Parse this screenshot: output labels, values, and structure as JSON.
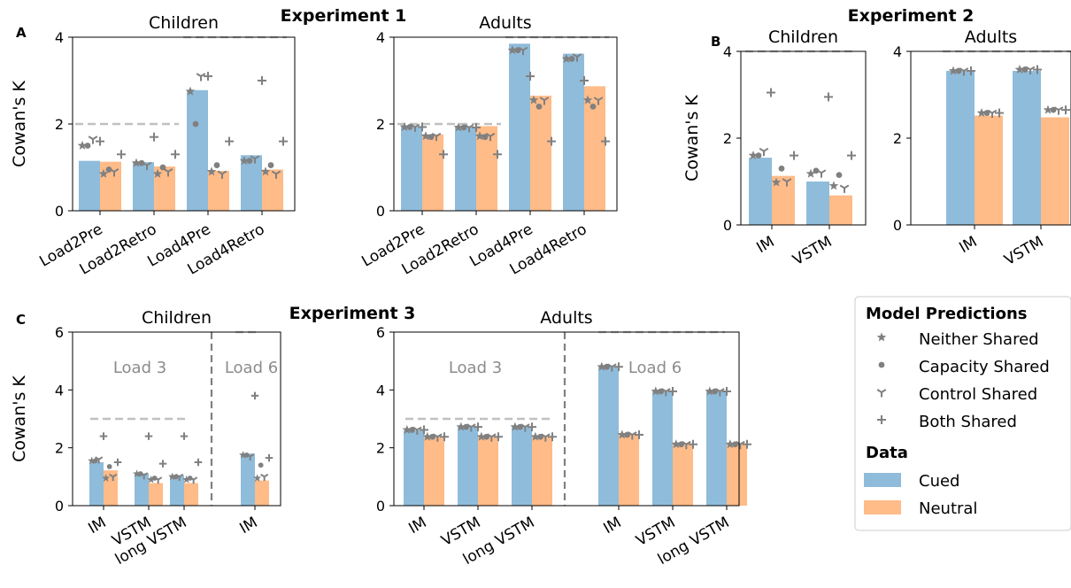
{
  "experiments": {
    "e1": "Experiment 1",
    "e2": "Experiment 2",
    "e3": "Experiment 3"
  },
  "panel_letters": {
    "a": "A",
    "b": "B",
    "c": "C"
  },
  "colors": {
    "cued": "#8fbcdb",
    "neutral": "#ffbb88",
    "marker": "#808080",
    "dash": "#c0c0c0",
    "divider": "#808080",
    "annot": "#8c8c8c"
  },
  "legend": {
    "model_title": "Model Predictions",
    "models": [
      {
        "name": "Neither Shared",
        "marker": "star-icon"
      },
      {
        "name": "Capacity Shared",
        "marker": "circle-icon"
      },
      {
        "name": "Control Shared",
        "marker": "tri-down-icon"
      },
      {
        "name": "Both Shared",
        "marker": "plus-icon"
      }
    ],
    "data_title": "Data",
    "data": [
      {
        "name": "Cued",
        "color": "#8fbcdb"
      },
      {
        "name": "Neutral",
        "color": "#ffbb88"
      }
    ]
  },
  "chart_data": [
    {
      "id": "A-children",
      "type": "bar",
      "title": "Children",
      "ylabel": "Cowan's K",
      "ylim": [
        0,
        4
      ],
      "yticks": [
        0,
        2,
        4
      ],
      "categories": [
        "Load2Pre",
        "Load2Retro",
        "Load4Pre",
        "Load4Retro"
      ],
      "series": [
        {
          "name": "Cued",
          "values": [
            1.15,
            1.12,
            2.78,
            1.28
          ]
        },
        {
          "name": "Neutral",
          "values": [
            1.13,
            1.02,
            0.92,
            0.95
          ]
        }
      ],
      "capacity": [
        2,
        2,
        4,
        4
      ],
      "predictions": {
        "Neither Shared": [
          [
            1.5,
            0.85
          ],
          [
            1.1,
            0.85
          ],
          [
            2.75,
            0.9
          ],
          [
            1.15,
            0.9
          ]
        ],
        "Capacity Shared": [
          [
            1.5,
            0.95
          ],
          [
            1.1,
            1.0
          ],
          [
            2.0,
            1.05
          ],
          [
            1.15,
            1.05
          ]
        ],
        "Control Shared": [
          [
            1.65,
            0.9
          ],
          [
            1.05,
            0.9
          ],
          [
            3.1,
            0.85
          ],
          [
            1.2,
            0.85
          ]
        ],
        "Both Shared": [
          [
            1.6,
            1.3
          ],
          [
            1.7,
            1.3
          ],
          [
            3.1,
            1.6
          ],
          [
            3.0,
            1.6
          ]
        ]
      }
    },
    {
      "id": "A-adults",
      "type": "bar",
      "title": "Adults",
      "ylabel": "",
      "ylim": [
        0,
        4
      ],
      "yticks": [
        0,
        2,
        4
      ],
      "categories": [
        "Load2Pre",
        "Load2Retro",
        "Load4Pre",
        "Load4Retro"
      ],
      "series": [
        {
          "name": "Cued",
          "values": [
            1.93,
            1.93,
            3.85,
            3.62
          ]
        },
        {
          "name": "Neutral",
          "values": [
            1.76,
            1.95,
            2.65,
            2.87
          ]
        }
      ],
      "capacity": [
        2,
        2,
        4,
        4
      ],
      "predictions": {
        "Neither Shared": [
          [
            1.93,
            1.72
          ],
          [
            1.92,
            1.72
          ],
          [
            3.7,
            2.55
          ],
          [
            3.5,
            2.55
          ]
        ],
        "Capacity Shared": [
          [
            1.93,
            1.7
          ],
          [
            1.92,
            1.7
          ],
          [
            3.7,
            2.4
          ],
          [
            3.5,
            2.4
          ]
        ],
        "Control Shared": [
          [
            1.93,
            1.72
          ],
          [
            1.92,
            1.72
          ],
          [
            3.7,
            2.55
          ],
          [
            3.55,
            2.55
          ]
        ],
        "Both Shared": [
          [
            1.93,
            1.3
          ],
          [
            1.92,
            1.3
          ],
          [
            3.1,
            1.6
          ],
          [
            3.0,
            1.6
          ]
        ]
      }
    },
    {
      "id": "B-children",
      "type": "bar",
      "title": "Children",
      "ylabel": "Cowan's K",
      "ylim": [
        0,
        4
      ],
      "yticks": [
        0,
        2,
        4
      ],
      "categories": [
        "IM",
        "VSTM"
      ],
      "series": [
        {
          "name": "Cued",
          "values": [
            1.55,
            1.0
          ]
        },
        {
          "name": "Neutral",
          "values": [
            1.13,
            0.68
          ]
        }
      ],
      "capacity": [
        4,
        4
      ],
      "predictions": {
        "Neither Shared": [
          [
            1.6,
            0.98
          ],
          [
            1.18,
            0.9
          ]
        ],
        "Capacity Shared": [
          [
            1.6,
            1.3
          ],
          [
            1.25,
            1.15
          ]
        ],
        "Control Shared": [
          [
            1.7,
            1.0
          ],
          [
            1.2,
            0.85
          ]
        ],
        "Both Shared": [
          [
            3.05,
            1.6
          ],
          [
            2.95,
            1.6
          ]
        ]
      }
    },
    {
      "id": "B-adults",
      "type": "bar",
      "title": "Adults",
      "ylabel": "",
      "ylim": [
        0,
        4
      ],
      "yticks": [
        0,
        2,
        4
      ],
      "categories": [
        "IM",
        "VSTM"
      ],
      "series": [
        {
          "name": "Cued",
          "values": [
            3.55,
            3.55
          ]
        },
        {
          "name": "Neutral",
          "values": [
            2.52,
            2.48
          ]
        }
      ],
      "capacity": [
        4,
        4
      ],
      "predictions": {
        "Neither Shared": [
          [
            3.55,
            2.58
          ],
          [
            3.58,
            2.65
          ]
        ],
        "Capacity Shared": [
          [
            3.55,
            2.58
          ],
          [
            3.58,
            2.65
          ]
        ],
        "Control Shared": [
          [
            3.55,
            2.58
          ],
          [
            3.58,
            2.65
          ]
        ],
        "Both Shared": [
          [
            3.55,
            2.58
          ],
          [
            3.58,
            2.65
          ]
        ]
      }
    },
    {
      "id": "C-children",
      "type": "bar",
      "title": "Children",
      "ylabel": "Cowan's K",
      "ylim": [
        0,
        6
      ],
      "yticks": [
        0,
        2,
        4,
        6
      ],
      "categories": [
        "IM",
        "VSTM",
        "long VSTM",
        "IM"
      ],
      "groups": [
        "Load 3",
        "Load 3",
        "Load 3",
        "Load 6"
      ],
      "series": [
        {
          "name": "Cued",
          "values": [
            1.5,
            1.12,
            1.05,
            1.8
          ]
        },
        {
          "name": "Neutral",
          "values": [
            1.22,
            0.78,
            0.78,
            0.87
          ]
        }
      ],
      "capacity": [
        3,
        3,
        3,
        6
      ],
      "predictions": {
        "Neither Shared": [
          [
            1.55,
            0.95
          ],
          [
            1.1,
            0.9
          ],
          [
            1.0,
            0.9
          ],
          [
            1.75,
            0.95
          ]
        ],
        "Capacity Shared": [
          [
            1.55,
            1.35
          ],
          [
            1.1,
            0.95
          ],
          [
            1.0,
            0.95
          ],
          [
            1.75,
            1.4
          ]
        ],
        "Control Shared": [
          [
            1.6,
            1.0
          ],
          [
            1.05,
            0.9
          ],
          [
            1.0,
            0.9
          ],
          [
            1.7,
            1.0
          ]
        ],
        "Both Shared": [
          [
            2.4,
            1.5
          ],
          [
            2.4,
            1.45
          ],
          [
            2.4,
            1.5
          ],
          [
            3.8,
            1.65
          ]
        ]
      }
    },
    {
      "id": "C-adults",
      "type": "bar",
      "title": "Adults",
      "ylabel": "",
      "ylim": [
        0,
        6
      ],
      "yticks": [
        0,
        2,
        4,
        6
      ],
      "categories": [
        "IM",
        "VSTM",
        "long VSTM",
        "IM",
        "VSTM",
        "long VSTM"
      ],
      "groups": [
        "Load 3",
        "Load 3",
        "Load 3",
        "Load 6",
        "Load 6",
        "Load 6"
      ],
      "series": [
        {
          "name": "Cued",
          "values": [
            2.6,
            2.72,
            2.72,
            4.82,
            3.95,
            3.95
          ]
        },
        {
          "name": "Neutral",
          "values": [
            2.38,
            2.38,
            2.38,
            2.48,
            2.15,
            2.15
          ]
        }
      ],
      "capacity": [
        3,
        3,
        3,
        6,
        6,
        6
      ],
      "predictions": {
        "Neither Shared": [
          [
            2.62,
            2.38
          ],
          [
            2.72,
            2.38
          ],
          [
            2.72,
            2.38
          ],
          [
            4.8,
            2.45
          ],
          [
            3.95,
            2.12
          ],
          [
            3.95,
            2.12
          ]
        ],
        "Capacity Shared": [
          [
            2.62,
            2.38
          ],
          [
            2.72,
            2.38
          ],
          [
            2.72,
            2.38
          ],
          [
            4.8,
            2.45
          ],
          [
            3.95,
            2.12
          ],
          [
            3.95,
            2.12
          ]
        ],
        "Control Shared": [
          [
            2.62,
            2.38
          ],
          [
            2.72,
            2.38
          ],
          [
            2.72,
            2.38
          ],
          [
            4.8,
            2.45
          ],
          [
            3.95,
            2.12
          ],
          [
            3.95,
            2.12
          ]
        ],
        "Both Shared": [
          [
            2.62,
            2.38
          ],
          [
            2.72,
            2.38
          ],
          [
            2.72,
            2.38
          ],
          [
            4.8,
            2.45
          ],
          [
            3.95,
            2.12
          ],
          [
            3.95,
            2.12
          ]
        ]
      }
    }
  ]
}
